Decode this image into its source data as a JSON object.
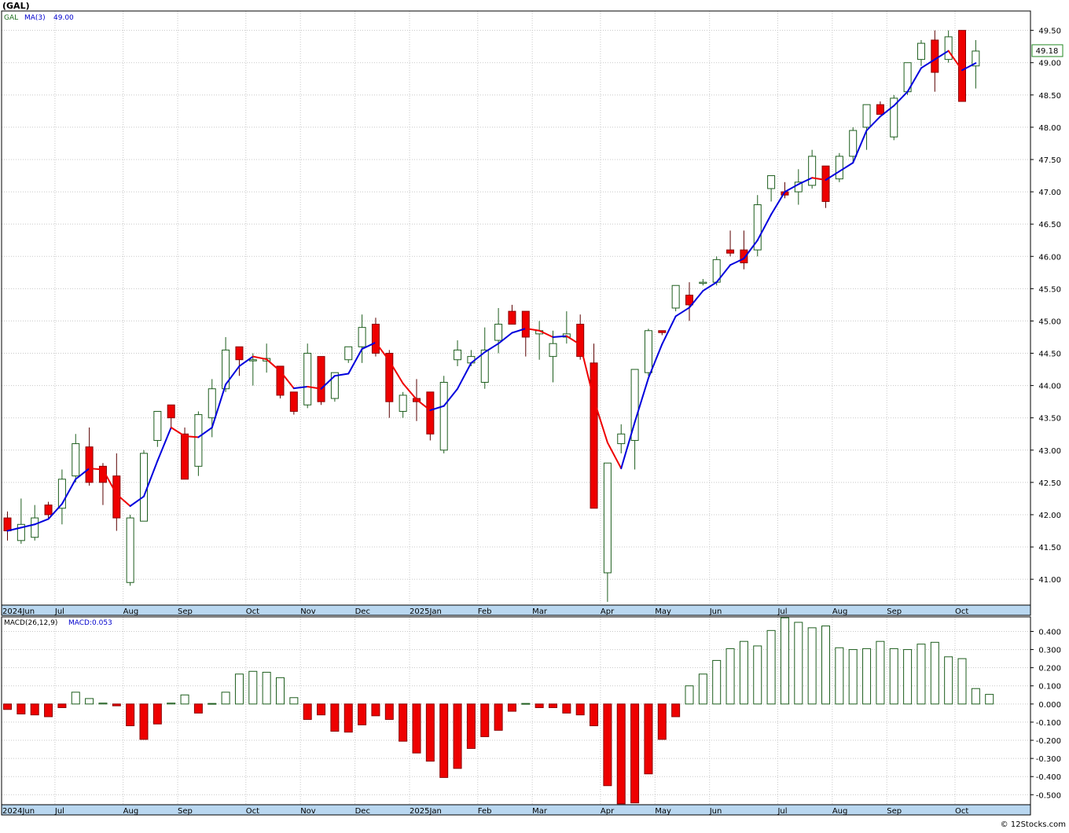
{
  "title": "(GAL)",
  "credit": "© 12Stocks.com",
  "chart_data": [
    {
      "type": "candlestick",
      "legend": {
        "symbol": "GAL",
        "ma_label": "MA(3)",
        "ma_value": "49.00"
      },
      "last_price": "49.18",
      "y_ticks": [
        "49.50",
        "49.00",
        "48.50",
        "48.00",
        "47.50",
        "47.00",
        "46.50",
        "46.00",
        "45.50",
        "45.00",
        "44.50",
        "44.00",
        "43.50",
        "43.00",
        "42.50",
        "42.00",
        "41.50",
        "41.00"
      ],
      "ylim": [
        40.6,
        49.8
      ],
      "x_labels": [
        "2024Jun",
        "Jul",
        "Aug",
        "Sep",
        "Oct",
        "Nov",
        "Dec",
        "2025Jan",
        "Feb",
        "Mar",
        "Apr",
        "May",
        "Jun",
        "Jul",
        "Aug",
        "Sep",
        "Oct"
      ],
      "x_label_weeks": [
        0,
        4,
        9,
        13,
        18,
        22,
        26,
        30,
        35,
        39,
        44,
        48,
        52,
        57,
        61,
        65,
        70
      ],
      "weeks": [
        {
          "o": 41.95,
          "h": 42.05,
          "l": 41.6,
          "c": 41.75
        },
        {
          "o": 41.6,
          "h": 42.25,
          "l": 41.55,
          "c": 41.85
        },
        {
          "o": 41.65,
          "h": 42.15,
          "l": 41.6,
          "c": 41.95
        },
        {
          "o": 42.15,
          "h": 42.2,
          "l": 41.95,
          "c": 42.0
        },
        {
          "o": 42.1,
          "h": 42.7,
          "l": 41.85,
          "c": 42.55
        },
        {
          "o": 42.6,
          "h": 43.25,
          "l": 42.5,
          "c": 43.1
        },
        {
          "o": 43.05,
          "h": 43.35,
          "l": 42.45,
          "c": 42.5
        },
        {
          "o": 42.75,
          "h": 42.8,
          "l": 42.15,
          "c": 42.5
        },
        {
          "o": 42.6,
          "h": 42.95,
          "l": 41.75,
          "c": 41.95
        },
        {
          "o": 40.95,
          "h": 42.0,
          "l": 40.9,
          "c": 41.95
        },
        {
          "o": 41.9,
          "h": 43.0,
          "l": 41.9,
          "c": 42.95
        },
        {
          "o": 43.15,
          "h": 43.6,
          "l": 43.05,
          "c": 43.6
        },
        {
          "o": 43.7,
          "h": 43.7,
          "l": 43.35,
          "c": 43.5
        },
        {
          "o": 43.25,
          "h": 43.35,
          "l": 42.55,
          "c": 42.55
        },
        {
          "o": 42.75,
          "h": 43.6,
          "l": 42.6,
          "c": 43.55
        },
        {
          "o": 43.5,
          "h": 44.1,
          "l": 43.2,
          "c": 43.95
        },
        {
          "o": 43.95,
          "h": 44.75,
          "l": 43.9,
          "c": 44.55
        },
        {
          "o": 44.6,
          "h": 44.6,
          "l": 44.15,
          "c": 44.4
        },
        {
          "o": 44.4,
          "h": 44.5,
          "l": 44.0,
          "c": 44.4
        },
        {
          "o": 44.38,
          "h": 44.65,
          "l": 44.2,
          "c": 44.42
        },
        {
          "o": 44.3,
          "h": 44.3,
          "l": 43.8,
          "c": 43.85
        },
        {
          "o": 43.9,
          "h": 43.9,
          "l": 43.55,
          "c": 43.6
        },
        {
          "o": 43.7,
          "h": 44.65,
          "l": 43.65,
          "c": 44.5
        },
        {
          "o": 44.45,
          "h": 44.45,
          "l": 43.7,
          "c": 43.75
        },
        {
          "o": 43.8,
          "h": 44.2,
          "l": 43.75,
          "c": 44.2
        },
        {
          "o": 44.4,
          "h": 44.6,
          "l": 44.35,
          "c": 44.6
        },
        {
          "o": 44.6,
          "h": 45.1,
          "l": 44.35,
          "c": 44.9
        },
        {
          "o": 44.95,
          "h": 45.05,
          "l": 44.45,
          "c": 44.5
        },
        {
          "o": 44.5,
          "h": 44.55,
          "l": 43.5,
          "c": 43.75
        },
        {
          "o": 43.6,
          "h": 43.9,
          "l": 43.5,
          "c": 43.85
        },
        {
          "o": 43.8,
          "h": 44.1,
          "l": 43.45,
          "c": 43.75
        },
        {
          "o": 43.9,
          "h": 43.9,
          "l": 43.15,
          "c": 43.25
        },
        {
          "o": 43.0,
          "h": 44.15,
          "l": 42.95,
          "c": 44.05
        },
        {
          "o": 44.4,
          "h": 44.7,
          "l": 44.3,
          "c": 44.55
        },
        {
          "o": 44.35,
          "h": 44.55,
          "l": 44.3,
          "c": 44.45
        },
        {
          "o": 44.05,
          "h": 44.9,
          "l": 43.95,
          "c": 44.55
        },
        {
          "o": 44.7,
          "h": 45.2,
          "l": 44.5,
          "c": 44.95
        },
        {
          "o": 45.15,
          "h": 45.25,
          "l": 44.95,
          "c": 44.95
        },
        {
          "o": 45.15,
          "h": 45.15,
          "l": 44.45,
          "c": 44.75
        },
        {
          "o": 44.8,
          "h": 45.0,
          "l": 44.4,
          "c": 44.85
        },
        {
          "o": 44.45,
          "h": 44.85,
          "l": 44.05,
          "c": 44.65
        },
        {
          "o": 44.75,
          "h": 45.15,
          "l": 44.65,
          "c": 44.8
        },
        {
          "o": 44.95,
          "h": 45.1,
          "l": 44.4,
          "c": 44.45
        },
        {
          "o": 44.35,
          "h": 44.65,
          "l": 42.1,
          "c": 42.1
        },
        {
          "o": 41.1,
          "h": 42.8,
          "l": 40.65,
          "c": 42.8
        },
        {
          "o": 43.1,
          "h": 43.4,
          "l": 42.95,
          "c": 43.25
        },
        {
          "o": 43.15,
          "h": 44.25,
          "l": 42.7,
          "c": 44.25
        },
        {
          "o": 44.2,
          "h": 44.88,
          "l": 44.15,
          "c": 44.85
        },
        {
          "o": 44.85,
          "h": 44.85,
          "l": 44.78,
          "c": 44.82
        },
        {
          "o": 45.2,
          "h": 45.55,
          "l": 45.15,
          "c": 45.55
        },
        {
          "o": 45.4,
          "h": 45.6,
          "l": 45.0,
          "c": 45.25
        },
        {
          "o": 45.6,
          "h": 45.65,
          "l": 45.55,
          "c": 45.6
        },
        {
          "o": 45.6,
          "h": 46.0,
          "l": 45.55,
          "c": 45.95
        },
        {
          "o": 46.1,
          "h": 46.4,
          "l": 46.0,
          "c": 46.05
        },
        {
          "o": 46.1,
          "h": 46.4,
          "l": 45.8,
          "c": 45.9
        },
        {
          "o": 46.1,
          "h": 46.95,
          "l": 46.0,
          "c": 46.8
        },
        {
          "o": 47.05,
          "h": 47.25,
          "l": 46.85,
          "c": 47.25
        },
        {
          "o": 47.0,
          "h": 47.15,
          "l": 46.9,
          "c": 46.95
        },
        {
          "o": 47.0,
          "h": 47.35,
          "l": 46.8,
          "c": 47.15
        },
        {
          "o": 47.1,
          "h": 47.65,
          "l": 47.05,
          "c": 47.55
        },
        {
          "o": 47.4,
          "h": 47.4,
          "l": 46.75,
          "c": 46.85
        },
        {
          "o": 47.2,
          "h": 47.6,
          "l": 47.15,
          "c": 47.55
        },
        {
          "o": 47.55,
          "h": 48.0,
          "l": 47.45,
          "c": 47.95
        },
        {
          "o": 48.0,
          "h": 48.35,
          "l": 47.65,
          "c": 48.35
        },
        {
          "o": 48.35,
          "h": 48.4,
          "l": 48.2,
          "c": 48.2
        },
        {
          "o": 47.85,
          "h": 48.5,
          "l": 47.8,
          "c": 48.45
        },
        {
          "o": 48.55,
          "h": 49.0,
          "l": 48.5,
          "c": 49.0
        },
        {
          "o": 49.05,
          "h": 49.35,
          "l": 48.95,
          "c": 49.3
        },
        {
          "o": 49.35,
          "h": 49.5,
          "l": 48.55,
          "c": 48.85
        },
        {
          "o": 49.05,
          "h": 49.5,
          "l": 49.0,
          "c": 49.4
        },
        {
          "o": 49.5,
          "h": 49.5,
          "l": 48.4,
          "c": 48.4
        },
        {
          "o": 48.95,
          "h": 49.35,
          "l": 48.6,
          "c": 49.18
        }
      ]
    },
    {
      "type": "bar",
      "legend": {
        "label": "MACD(26,12,9)",
        "value_label": "MACD:0.053"
      },
      "y_ticks": [
        "0.400",
        "0.300",
        "0.200",
        "0.100",
        "0.000",
        "-0.100",
        "-0.200",
        "-0.300",
        "-0.400",
        "-0.500"
      ],
      "ylim": [
        -0.555,
        0.48
      ],
      "values": [
        -0.03,
        -0.055,
        -0.06,
        -0.07,
        -0.02,
        0.065,
        0.03,
        0.005,
        -0.01,
        -0.12,
        -0.195,
        -0.11,
        0.005,
        0.05,
        -0.05,
        0.003,
        0.065,
        0.165,
        0.18,
        0.175,
        0.145,
        0.035,
        -0.085,
        -0.06,
        -0.15,
        -0.155,
        -0.115,
        -0.065,
        -0.085,
        -0.205,
        -0.27,
        -0.315,
        -0.405,
        -0.355,
        -0.245,
        -0.18,
        -0.145,
        -0.04,
        0.003,
        -0.02,
        -0.02,
        -0.05,
        -0.06,
        -0.12,
        -0.45,
        -0.55,
        -0.545,
        -0.385,
        -0.195,
        -0.07,
        0.1,
        0.165,
        0.24,
        0.305,
        0.345,
        0.32,
        0.405,
        0.475,
        0.45,
        0.42,
        0.43,
        0.31,
        0.3,
        0.305,
        0.345,
        0.305,
        0.3,
        0.33,
        0.34,
        0.26,
        0.25,
        0.085,
        0.053
      ]
    }
  ]
}
